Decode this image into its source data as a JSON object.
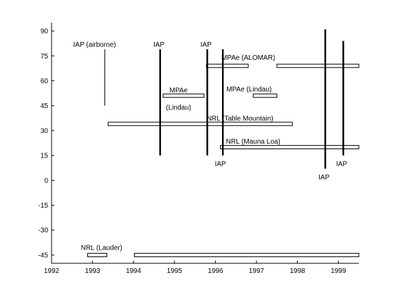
{
  "chart_data": {
    "type": "timeline",
    "title": "",
    "xlabel": "",
    "ylabel": "",
    "xlim": [
      1992,
      1999.5
    ],
    "ylim": [
      -50,
      95
    ],
    "xticks": [
      1992,
      1993,
      1994,
      1995,
      1996,
      1997,
      1998,
      1999
    ],
    "yticks": [
      90,
      75,
      60,
      45,
      30,
      15,
      0,
      -15,
      -30,
      -45
    ],
    "grid": false,
    "intervals": [
      {
        "name": "MPAe (ALOMAR)",
        "segments": [
          [
            1995.78,
            1996.8
          ],
          [
            1997.5,
            1999.5
          ]
        ],
        "y": 69
      },
      {
        "name": "MPAe (Lindau) 1",
        "segments": [
          [
            1994.72,
            1995.72
          ]
        ],
        "y": 51
      },
      {
        "name": "MPAe (Lindau) 2",
        "segments": [
          [
            1996.92,
            1997.5
          ]
        ],
        "y": 51
      },
      {
        "name": "NRL (Table Mountain)",
        "segments": [
          [
            1993.38,
            1997.88
          ]
        ],
        "y": 34
      },
      {
        "name": "NRL (Mauna Loa)",
        "segments": [
          [
            1996.12,
            1999.5
          ]
        ],
        "y": 20
      },
      {
        "name": "NRL (Lauder)",
        "segments": [
          [
            1992.88,
            1993.35
          ],
          [
            1994.02,
            1999.5
          ]
        ],
        "y": -45
      }
    ],
    "campaigns": [
      {
        "name": "IAP (airborne)",
        "x": 1993.3,
        "y_range": [
          45,
          79
        ],
        "style": "thin"
      },
      {
        "name": "IAP 1",
        "x": 1994.65,
        "y_range": [
          15,
          79
        ],
        "style": "thick"
      },
      {
        "name": "IAP 2",
        "x": 1995.8,
        "y_range": [
          15,
          79
        ],
        "style": "thick"
      },
      {
        "name": "IAP 3",
        "x": 1996.18,
        "y_range": [
          15,
          79
        ],
        "style": "thick"
      },
      {
        "name": "IAP 4",
        "x": 1998.68,
        "y_range": [
          7,
          91
        ],
        "style": "thick"
      },
      {
        "name": "IAP 5",
        "x": 1999.12,
        "y_range": [
          15,
          84
        ],
        "style": "thick"
      }
    ],
    "labels": [
      {
        "text": "IAP (airborne)",
        "x": 1993.05,
        "y": 82
      },
      {
        "text": "IAP",
        "x": 1994.62,
        "y": 82
      },
      {
        "text": "IAP",
        "x": 1995.77,
        "y": 82
      },
      {
        "text": "IAP",
        "x": 1996.12,
        "y": 10
      },
      {
        "text": "IAP",
        "x": 1998.65,
        "y": 2
      },
      {
        "text": "IAP",
        "x": 1999.08,
        "y": 10
      },
      {
        "text": "MPAe (ALOMAR)",
        "x": 1996.8,
        "y": 74
      },
      {
        "text": "MPAe",
        "x": 1995.1,
        "y": 54.5
      },
      {
        "text": "(Lindau)",
        "x": 1995.1,
        "y": 44
      },
      {
        "text": "MPAe (Lindau)",
        "x": 1996.82,
        "y": 55
      },
      {
        "text": "NRL (Table Mountain)",
        "x": 1996.6,
        "y": 37.5
      },
      {
        "text": "NRL (Mauna Loa)",
        "x": 1996.92,
        "y": 23.5
      },
      {
        "text": "NRL (Lauder)",
        "x": 1993.22,
        "y": -40.5
      }
    ]
  }
}
